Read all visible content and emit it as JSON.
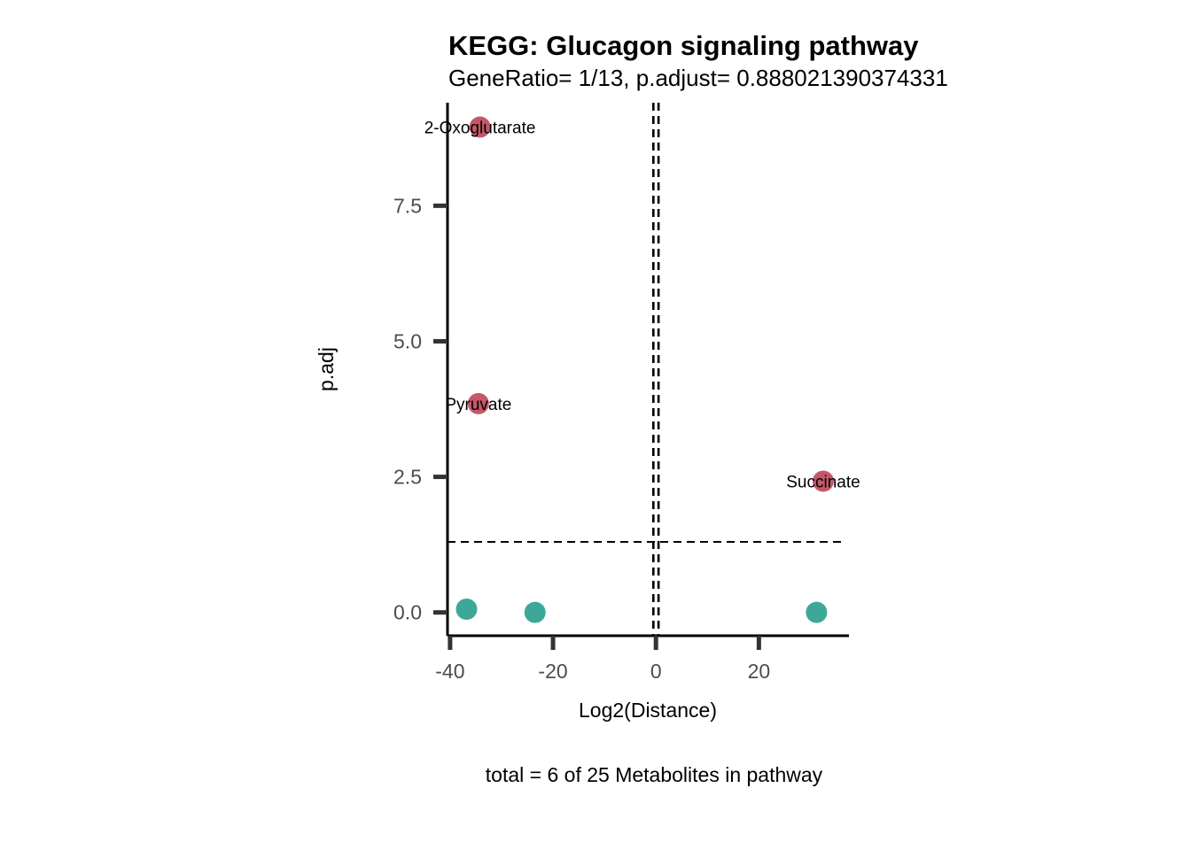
{
  "chart_data": {
    "type": "scatter",
    "title": "KEGG: Glucagon signaling pathway",
    "subtitle": "GeneRatio= 1/13, p.adjust= 0.888021390374331",
    "xlabel": "Log2(Distance)",
    "ylabel": "p.adj",
    "caption": "total = 6 of 25 Metabolites in pathway",
    "xlim": [
      -40.5,
      37.5
    ],
    "ylim": [
      -0.43,
      9.4
    ],
    "x_ticks": [
      {
        "value": -40,
        "label": "-40"
      },
      {
        "value": -20,
        "label": "-20"
      },
      {
        "value": 0,
        "label": "0"
      },
      {
        "value": 20,
        "label": "20"
      }
    ],
    "y_ticks": [
      {
        "value": 0,
        "label": "0.0"
      },
      {
        "value": 2.5,
        "label": "2.5"
      },
      {
        "value": 5,
        "label": "5.0"
      },
      {
        "value": 7.5,
        "label": "7.5"
      }
    ],
    "reference_lines": {
      "vertical": [
        -0.5,
        0.5
      ],
      "horizontal": [
        1.3
      ]
    },
    "colors": {
      "significant": "#c45868",
      "not_significant": "#3ea898"
    },
    "points": [
      {
        "x": -34.2,
        "y": 8.95,
        "label": "2-Oxoglutarate",
        "significant": true
      },
      {
        "x": -34.5,
        "y": 3.85,
        "label": "Pyruvate",
        "significant": true
      },
      {
        "x": 32.5,
        "y": 2.42,
        "label": "Succinate",
        "significant": true
      },
      {
        "x": -36.8,
        "y": 0.06,
        "label": "",
        "significant": false
      },
      {
        "x": -23.5,
        "y": 0.0,
        "label": "",
        "significant": false
      },
      {
        "x": 31.2,
        "y": 0.0,
        "label": "",
        "significant": false
      }
    ]
  }
}
